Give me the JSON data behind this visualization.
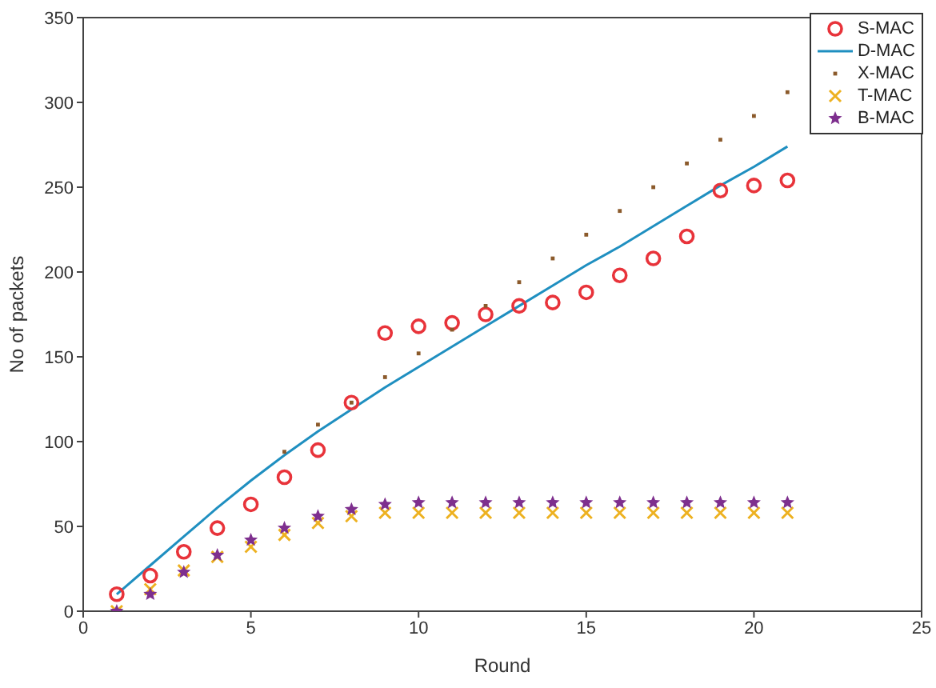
{
  "chart_data": {
    "type": "scatter",
    "xlabel": "Round",
    "ylabel": "No of packets",
    "xlim": [
      0,
      25
    ],
    "xticks": [
      0,
      5,
      10,
      15,
      20,
      25
    ],
    "ylim": [
      0,
      350
    ],
    "yticks": [
      0,
      50,
      100,
      150,
      200,
      250,
      300,
      350
    ],
    "grid": false,
    "legend": "top right",
    "x": [
      1,
      2,
      3,
      4,
      5,
      6,
      7,
      8,
      9,
      10,
      11,
      12,
      13,
      14,
      15,
      16,
      17,
      18,
      19,
      20,
      21
    ],
    "series": [
      {
        "name": "S-MAC",
        "marker": "circle",
        "color": "#e8333a",
        "values": [
          10,
          21,
          35,
          49,
          63,
          79,
          95,
          123,
          164,
          168,
          170,
          175,
          180,
          182,
          188,
          198,
          208,
          221,
          248,
          251,
          254
        ]
      },
      {
        "name": "D-MAC",
        "type": "line",
        "marker": "none",
        "color": "#1f8fc0",
        "values": [
          10,
          27,
          44,
          61,
          77,
          92,
          106,
          119,
          132,
          144,
          156,
          168,
          180,
          192,
          204,
          215,
          227,
          239,
          251,
          262,
          274
        ]
      },
      {
        "name": "X-MAC",
        "marker": "square",
        "color": "#8b5a2b",
        "x": [
          6,
          7,
          8,
          9,
          10,
          11,
          12,
          13,
          14,
          15,
          16,
          17,
          18,
          19,
          20,
          21
        ],
        "values": [
          94,
          110,
          123,
          138,
          152,
          166,
          180,
          194,
          208,
          222,
          236,
          250,
          264,
          278,
          292,
          306
        ]
      },
      {
        "name": "T-MAC",
        "marker": "cross",
        "color": "#edb120",
        "values": [
          0,
          13,
          24,
          32,
          38,
          45,
          52,
          56,
          58,
          58,
          58,
          58,
          58,
          58,
          58,
          58,
          58,
          58,
          58,
          58,
          58
        ]
      },
      {
        "name": "B-MAC",
        "marker": "star",
        "color": "#7e2f8e",
        "values": [
          0,
          10,
          23,
          33,
          42,
          49,
          56,
          60,
          63,
          64,
          64,
          64,
          64,
          64,
          64,
          64,
          64,
          64,
          64,
          64,
          64
        ]
      }
    ]
  }
}
